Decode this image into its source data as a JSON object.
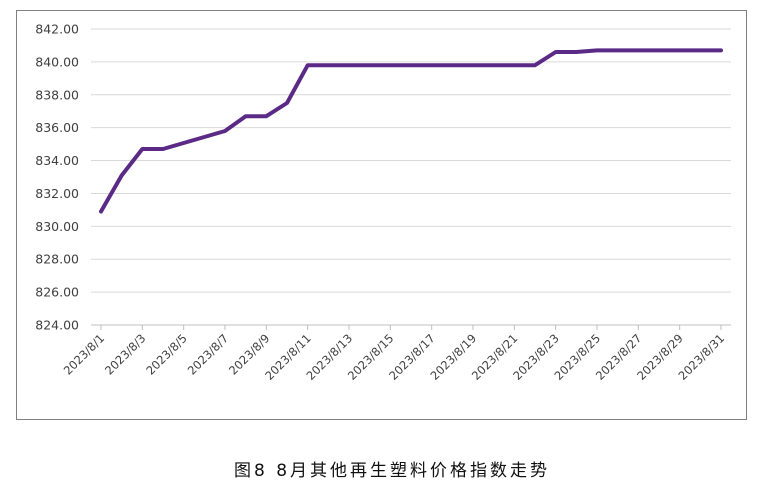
{
  "caption": "图8  8月其他再生塑料价格指数走势",
  "chart_data": {
    "type": "line",
    "title": "",
    "xlabel": "",
    "ylabel": "",
    "ylim": [
      824,
      842
    ],
    "y_ticks": [
      "824.00",
      "826.00",
      "828.00",
      "830.00",
      "832.00",
      "834.00",
      "836.00",
      "838.00",
      "840.00",
      "842.00"
    ],
    "x_ticks": [
      "2023/8/1",
      "2023/8/3",
      "2023/8/5",
      "2023/8/7",
      "2023/8/9",
      "2023/8/11",
      "2023/8/13",
      "2023/8/15",
      "2023/8/17",
      "2023/8/19",
      "2023/8/21",
      "2023/8/23",
      "2023/8/25",
      "2023/8/27",
      "2023/8/29",
      "2023/8/31"
    ],
    "grid": "horizontal",
    "legend": "none",
    "series": [
      {
        "color": "#5b2a86",
        "x": [
          "2023/8/1",
          "2023/8/2",
          "2023/8/3",
          "2023/8/4",
          "2023/8/7",
          "2023/8/8",
          "2023/8/9",
          "2023/8/10",
          "2023/8/11",
          "2023/8/14",
          "2023/8/15",
          "2023/8/16",
          "2023/8/17",
          "2023/8/18",
          "2023/8/21",
          "2023/8/22",
          "2023/8/23",
          "2023/8/24",
          "2023/8/25",
          "2023/8/28",
          "2023/8/29",
          "2023/8/30",
          "2023/8/31"
        ],
        "values": [
          830.9,
          833.1,
          834.7,
          834.7,
          835.8,
          836.7,
          836.7,
          837.5,
          839.8,
          839.8,
          839.8,
          839.8,
          839.8,
          839.8,
          839.8,
          839.8,
          840.6,
          840.6,
          840.7,
          840.7,
          840.7,
          840.7,
          840.7
        ]
      }
    ]
  }
}
